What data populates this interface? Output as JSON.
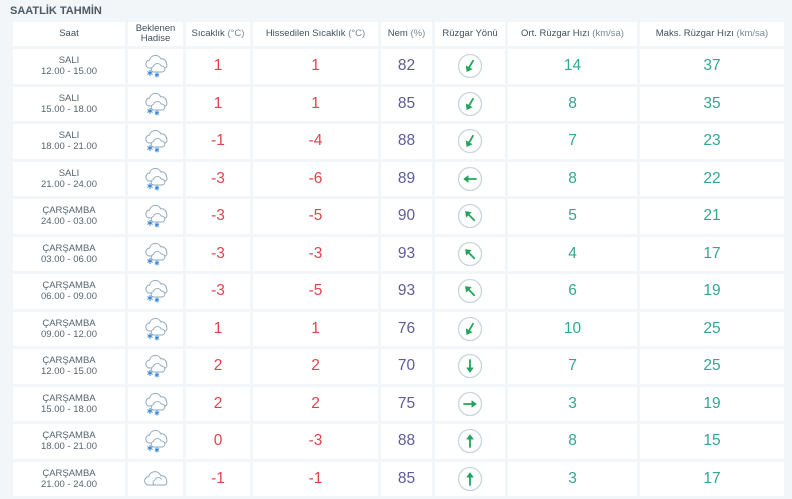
{
  "section_title": "SAATLİK TAHMİN",
  "colors": {
    "temperature": "#e2434b",
    "humidity": "#5d5c9a",
    "wind": "#33a594",
    "direction_ring": "#c9d6da",
    "direction_arrow": "#22a45a",
    "cloud_stroke": "#8da9bb",
    "snow_flake": "#3a8ad8"
  },
  "headers": {
    "time": "Saat",
    "event_line1": "Beklenen",
    "event_line2": "Hadise",
    "temp_label": "Sıcaklık",
    "temp_unit": "(°C)",
    "feels_label": "Hissedilen Sıcaklık",
    "feels_unit": "(°C)",
    "hum_label": "Nem",
    "hum_unit": "(%)",
    "dir_label": "Rüzgar Yönü",
    "avg_label": "Ort. Rüzgar Hızı",
    "avg_unit": "(km/sa)",
    "max_label": "Maks. Rüzgar Hızı",
    "max_unit": "(km/sa)"
  },
  "rows": [
    {
      "day": "SALI",
      "time": "12.00 - 15.00",
      "icon": "snowy-cloud-icon",
      "temp": "1",
      "feels": "1",
      "humidity": "82",
      "wind_dir": "arrow-down-left-icon",
      "avg_wind": "14",
      "max_wind": "37"
    },
    {
      "day": "SALI",
      "time": "15.00 - 18.00",
      "icon": "snowy-cloud-icon",
      "temp": "1",
      "feels": "1",
      "humidity": "85",
      "wind_dir": "arrow-down-left-icon",
      "avg_wind": "8",
      "max_wind": "35"
    },
    {
      "day": "SALI",
      "time": "18.00 - 21.00",
      "icon": "snowy-cloud-icon",
      "temp": "-1",
      "feels": "-4",
      "humidity": "88",
      "wind_dir": "arrow-down-left-icon",
      "avg_wind": "7",
      "max_wind": "23"
    },
    {
      "day": "SALI",
      "time": "21.00 - 24.00",
      "icon": "snowy-cloud-icon",
      "temp": "-3",
      "feels": "-6",
      "humidity": "89",
      "wind_dir": "arrow-left-icon",
      "avg_wind": "8",
      "max_wind": "22"
    },
    {
      "day": "ÇARŞAMBA",
      "time": "24.00 - 03.00",
      "icon": "snowy-cloud-icon",
      "temp": "-3",
      "feels": "-5",
      "humidity": "90",
      "wind_dir": "arrow-up-left-icon",
      "avg_wind": "5",
      "max_wind": "21"
    },
    {
      "day": "ÇARŞAMBA",
      "time": "03.00 - 06.00",
      "icon": "snowy-cloud-icon",
      "temp": "-3",
      "feels": "-3",
      "humidity": "93",
      "wind_dir": "arrow-up-left-icon",
      "avg_wind": "4",
      "max_wind": "17"
    },
    {
      "day": "ÇARŞAMBA",
      "time": "06.00 - 09.00",
      "icon": "snowy-cloud-icon",
      "temp": "-3",
      "feels": "-5",
      "humidity": "93",
      "wind_dir": "arrow-up-left-icon",
      "avg_wind": "6",
      "max_wind": "19"
    },
    {
      "day": "ÇARŞAMBA",
      "time": "09.00 - 12.00",
      "icon": "snowy-cloud-icon",
      "temp": "1",
      "feels": "1",
      "humidity": "76",
      "wind_dir": "arrow-down-left-icon",
      "avg_wind": "10",
      "max_wind": "25"
    },
    {
      "day": "ÇARŞAMBA",
      "time": "12.00 - 15.00",
      "icon": "snowy-cloud-icon",
      "temp": "2",
      "feels": "2",
      "humidity": "70",
      "wind_dir": "arrow-down-icon",
      "avg_wind": "7",
      "max_wind": "25"
    },
    {
      "day": "ÇARŞAMBA",
      "time": "15.00 - 18.00",
      "icon": "snowy-cloud-icon",
      "temp": "2",
      "feels": "2",
      "humidity": "75",
      "wind_dir": "arrow-right-icon",
      "avg_wind": "3",
      "max_wind": "19"
    },
    {
      "day": "ÇARŞAMBA",
      "time": "18.00 - 21.00",
      "icon": "snowy-cloud-icon",
      "temp": "0",
      "feels": "-3",
      "humidity": "88",
      "wind_dir": "arrow-up-icon",
      "avg_wind": "8",
      "max_wind": "15"
    },
    {
      "day": "ÇARŞAMBA",
      "time": "21.00 - 24.00",
      "icon": "cloud-icon",
      "temp": "-1",
      "feels": "-1",
      "humidity": "85",
      "wind_dir": "arrow-up-icon",
      "avg_wind": "3",
      "max_wind": "17"
    }
  ]
}
